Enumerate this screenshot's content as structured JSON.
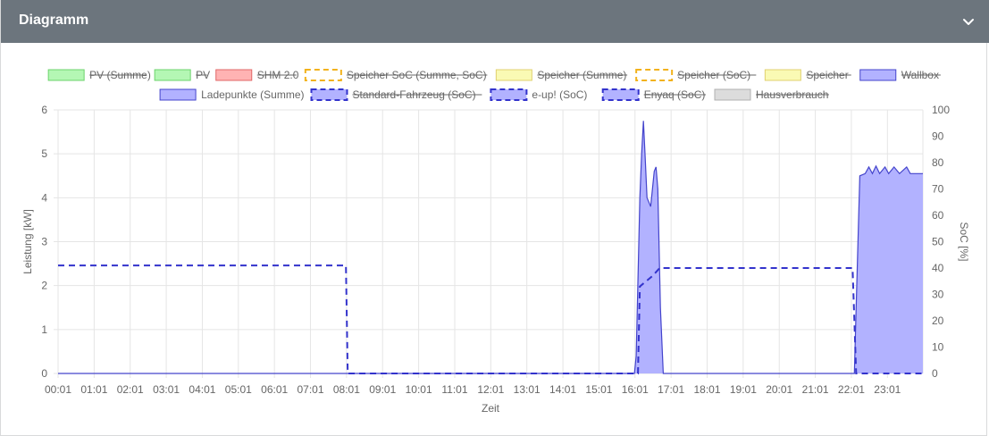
{
  "card": {
    "title": "Diagramm",
    "collapse_icon": "chevron-down-icon"
  },
  "chart_data": {
    "type": "area",
    "xlabel": "Zeit",
    "ylabel_left": "Leistung [kW]",
    "ylabel_right": "SoC [%]",
    "ylim_left": [
      0,
      6
    ],
    "ylim_right": [
      0,
      100
    ],
    "y_ticks_left": [
      "0",
      "1",
      "2",
      "3",
      "4",
      "5",
      "6"
    ],
    "y_ticks_right": [
      "0",
      "10",
      "20",
      "30",
      "40",
      "50",
      "60",
      "70",
      "80",
      "90",
      "100"
    ],
    "x_ticks": [
      "00:01",
      "01:01",
      "02:01",
      "03:01",
      "04:01",
      "05:01",
      "06:01",
      "07:01",
      "08:01",
      "09:01",
      "10:01",
      "11:01",
      "12:01",
      "13:01",
      "14:01",
      "15:01",
      "16:01",
      "17:01",
      "18:01",
      "19:01",
      "20:01",
      "21:01",
      "22:01",
      "23:01"
    ],
    "x_range_hours": [
      0.0167,
      24.0
    ],
    "grid": true,
    "legend_position": "top",
    "legend": [
      {
        "label": "PV (Summe)",
        "fill": "#b4f7b4",
        "stroke": "#6cd36c",
        "dashed": false,
        "hidden": true
      },
      {
        "label": "PV",
        "fill": "#b4f7b4",
        "stroke": "#6cd36c",
        "dashed": false,
        "hidden": true
      },
      {
        "label": "SHM 2.0",
        "fill": "#ffb3b3",
        "stroke": "#e06767",
        "dashed": false,
        "hidden": true
      },
      {
        "label": "Speicher SoC (Summe, SoC)",
        "fill": "#ffffff",
        "stroke": "#f2b21c",
        "dashed": true,
        "hidden": true
      },
      {
        "label": "Speicher (Summe)",
        "fill": "#fafab4",
        "stroke": "#e0d070",
        "dashed": false,
        "hidden": true
      },
      {
        "label": "Speicher (SoC)",
        "fill": "#ffffff",
        "stroke": "#f2b21c",
        "dashed": true,
        "hidden": true
      },
      {
        "label": "Speicher",
        "fill": "#fafab4",
        "stroke": "#e0d070",
        "dashed": false,
        "hidden": true
      },
      {
        "label": "Wallbox",
        "fill": "#b2b2ff",
        "stroke": "#4444cc",
        "dashed": false,
        "hidden": true
      },
      {
        "label": "Ladepunkte (Summe)",
        "fill": "#b2b2ff",
        "stroke": "#4444cc",
        "dashed": false,
        "hidden": false
      },
      {
        "label": "Standard-Fahrzeug (SoC)",
        "fill": "#b2b2ff",
        "stroke": "#3333cc",
        "dashed": true,
        "hidden": true
      },
      {
        "label": "e-up! (SoC)",
        "fill": "#b2b2ff",
        "stroke": "#3333cc",
        "dashed": true,
        "hidden": false
      },
      {
        "label": "Enyaq (SoC)",
        "fill": "#b2b2ff",
        "stroke": "#3333cc",
        "dashed": true,
        "hidden": true
      },
      {
        "label": "Hausverbrauch",
        "fill": "#dcdcdc",
        "stroke": "#b0b0b0",
        "dashed": false,
        "hidden": true
      }
    ],
    "series": [
      {
        "name": "Ladepunkte (Summe)",
        "axis": "left",
        "kind": "area",
        "color": "#4444cc",
        "fill": "#b2b2ff",
        "points": [
          [
            0.0167,
            0
          ],
          [
            16.0,
            0
          ],
          [
            16.05,
            0.4
          ],
          [
            16.15,
            4.0
          ],
          [
            16.2,
            5.0
          ],
          [
            16.25,
            5.75
          ],
          [
            16.3,
            4.9
          ],
          [
            16.35,
            4.0
          ],
          [
            16.45,
            3.8
          ],
          [
            16.55,
            4.6
          ],
          [
            16.6,
            4.7
          ],
          [
            16.65,
            4.2
          ],
          [
            16.72,
            1.5
          ],
          [
            16.8,
            0
          ],
          [
            22.1,
            0
          ],
          [
            22.15,
            1.5
          ],
          [
            22.25,
            4.5
          ],
          [
            22.4,
            4.55
          ],
          [
            22.5,
            4.7
          ],
          [
            22.6,
            4.55
          ],
          [
            22.7,
            4.72
          ],
          [
            22.8,
            4.55
          ],
          [
            22.95,
            4.7
          ],
          [
            23.05,
            4.55
          ],
          [
            23.2,
            4.7
          ],
          [
            23.35,
            4.55
          ],
          [
            23.55,
            4.7
          ],
          [
            23.65,
            4.55
          ],
          [
            24.0,
            4.55
          ]
        ]
      },
      {
        "name": "e-up! (SoC)",
        "axis": "right",
        "kind": "line",
        "dashed": true,
        "color": "#3333cc",
        "points": [
          [
            0.0167,
            41
          ],
          [
            8.0,
            41
          ],
          [
            8.05,
            0
          ],
          [
            15.9,
            0
          ],
          [
            16.1,
            0
          ],
          [
            16.15,
            33
          ],
          [
            16.5,
            37
          ],
          [
            16.7,
            40
          ],
          [
            22.05,
            40
          ],
          [
            22.15,
            0
          ],
          [
            24.0,
            0
          ]
        ]
      }
    ]
  }
}
